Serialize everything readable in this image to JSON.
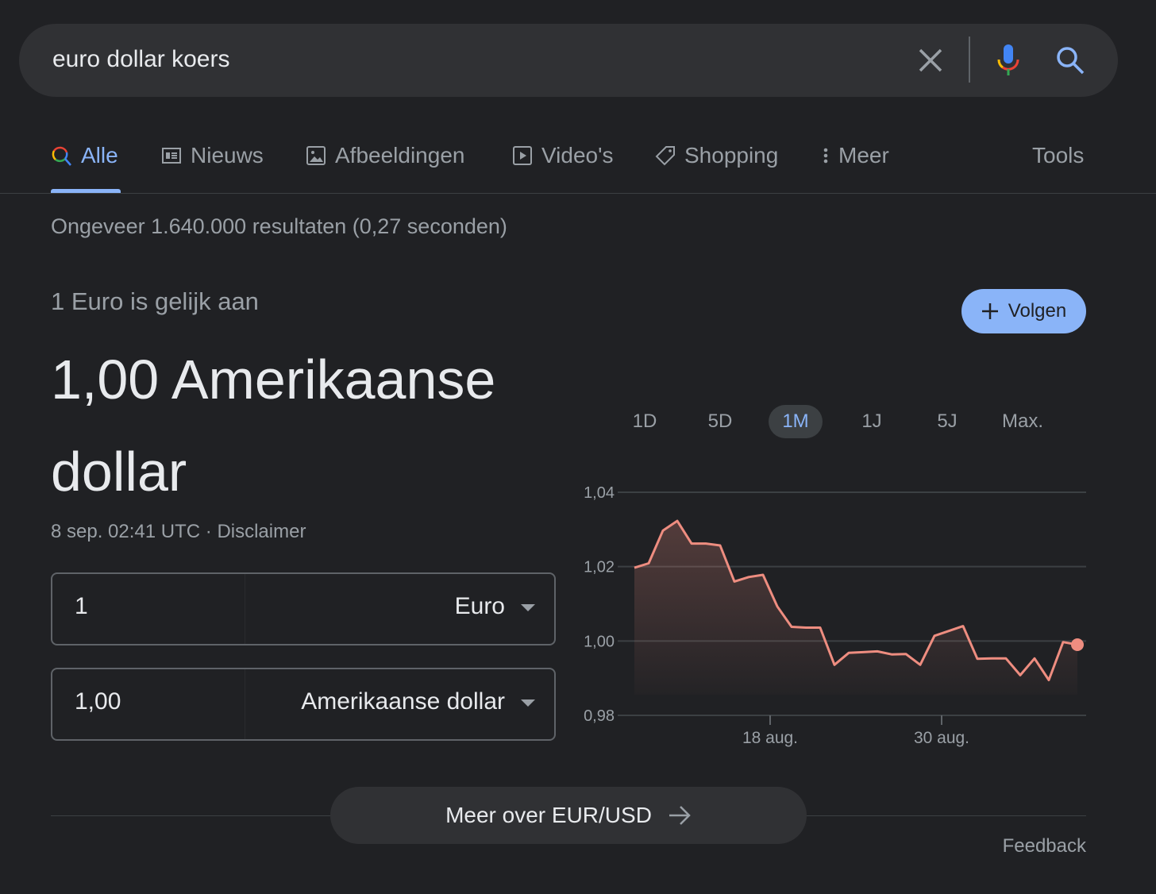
{
  "search": {
    "query": "euro dollar koers",
    "clear_icon": "close-icon",
    "mic_icon": "mic-icon",
    "search_icon": "search-icon"
  },
  "tabs": [
    {
      "label": "Alle",
      "icon": "search-icon",
      "active": true
    },
    {
      "label": "Nieuws",
      "icon": "news-icon"
    },
    {
      "label": "Afbeeldingen",
      "icon": "image-icon"
    },
    {
      "label": "Video's",
      "icon": "video-icon"
    },
    {
      "label": "Shopping",
      "icon": "tag-icon"
    },
    {
      "label": "Meer",
      "icon": "more-vert-icon"
    }
  ],
  "tools_label": "Tools",
  "stats": "Ongeveer 1.640.000 resultaten (0,27 seconden)",
  "converter": {
    "equal_label": "1 Euro is gelijk aan",
    "result": "1,00 Amerikaanse dollar",
    "timestamp": "8 sep. 02:41 UTC · ",
    "disclaimer": "Disclaimer",
    "follow_label": "Volgen",
    "from": {
      "value": "1",
      "currency": "Euro"
    },
    "to": {
      "value": "1,00",
      "currency": "Amerikaanse dollar"
    }
  },
  "ranges": [
    {
      "label": "1D"
    },
    {
      "label": "5D"
    },
    {
      "label": "1M",
      "active": true
    },
    {
      "label": "1J"
    },
    {
      "label": "5J"
    },
    {
      "label": "Max."
    }
  ],
  "colors": {
    "accent": "#8ab4f8",
    "line": "#ee8d80",
    "background": "#202124"
  },
  "chart_data": {
    "type": "area",
    "x": [
      "8 aug.",
      "9 aug.",
      "10 aug.",
      "11 aug.",
      "12 aug.",
      "13 aug.",
      "14 aug.",
      "15 aug.",
      "16 aug.",
      "17 aug.",
      "18 aug.",
      "19 aug.",
      "20 aug.",
      "21 aug.",
      "22 aug.",
      "23 aug.",
      "24 aug.",
      "25 aug.",
      "26 aug.",
      "27 aug.",
      "28 aug.",
      "29 aug.",
      "30 aug.",
      "31 aug.",
      "1 sep.",
      "2 sep.",
      "3 sep.",
      "4 sep.",
      "5 sep.",
      "6 sep.",
      "7 sep.",
      "8 sep."
    ],
    "values": [
      1.0197,
      1.0209,
      1.0297,
      1.0323,
      1.0262,
      1.0262,
      1.0257,
      1.016,
      1.0172,
      1.0178,
      1.0093,
      1.0038,
      1.0036,
      1.0036,
      0.9936,
      0.9968,
      0.997,
      0.9972,
      0.9964,
      0.9965,
      0.9936,
      1.0014,
      1.0027,
      1.004,
      0.9952,
      0.9953,
      0.9953,
      0.9908,
      0.9953,
      0.9895,
      0.9997,
      0.999
    ],
    "ylim": [
      0.98,
      1.04
    ],
    "yticks": [
      "0,98",
      "1,00",
      "1,02",
      "1,04"
    ],
    "ytick_values": [
      0.98,
      1.0,
      1.02,
      1.04
    ],
    "xticks": [
      "18 aug.",
      "30 aug."
    ],
    "grid": true
  },
  "more_label": "Meer over EUR/USD",
  "feedback": "Feedback"
}
